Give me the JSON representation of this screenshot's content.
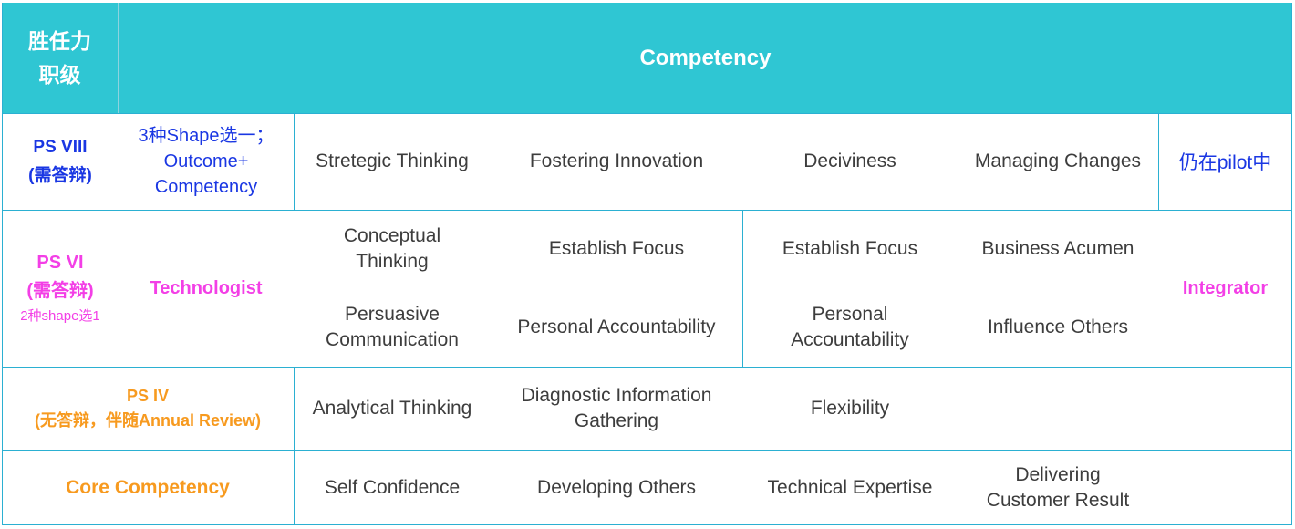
{
  "header": {
    "left_line1": "胜任力",
    "left_line2": "职级",
    "title": "Competency"
  },
  "ps8": {
    "level": "PS VIII",
    "level_note": "(需答辩)",
    "shape_line1": "3种Shape选一；",
    "shape_line2": "Outcome+",
    "shape_line3": "Competency",
    "items": [
      "Stretegic Thinking",
      "Fostering Innovation",
      "Deciviness",
      "Managing Changes"
    ],
    "pilot": "仍在pilot中"
  },
  "ps6": {
    "level": "PS VI",
    "level_note": "(需答辩)",
    "level_sub": "2种shape选1",
    "technologist": "Technologist",
    "integrator": "Integrator",
    "tech_r1c1_line1": "Conceptual",
    "tech_r1c1_line2": "Thinking",
    "tech_r1c2": "Establish Focus",
    "tech_r2c1_line1": "Persuasive",
    "tech_r2c1_line2": "Communication",
    "tech_r2c2": "Personal Accountability",
    "int_r1c1": "Establish Focus",
    "int_r1c2": "Business Acumen",
    "int_r2c1_line1": "Personal",
    "int_r2c1_line2": "Accountability",
    "int_r2c2": "Influence Others"
  },
  "ps4": {
    "level": "PS IV",
    "level_note": "(无答辩，伴随Annual Review)",
    "item1": "Analytical Thinking",
    "item2_line1": "Diagnostic Information",
    "item2_line2": "Gathering",
    "item3": "Flexibility"
  },
  "core": {
    "label": "Core Competency",
    "item1": "Self Confidence",
    "item2": "Developing Others",
    "item3": "Technical Expertise",
    "item4_line1": "Delivering",
    "item4_line2": "Customer Result"
  }
}
